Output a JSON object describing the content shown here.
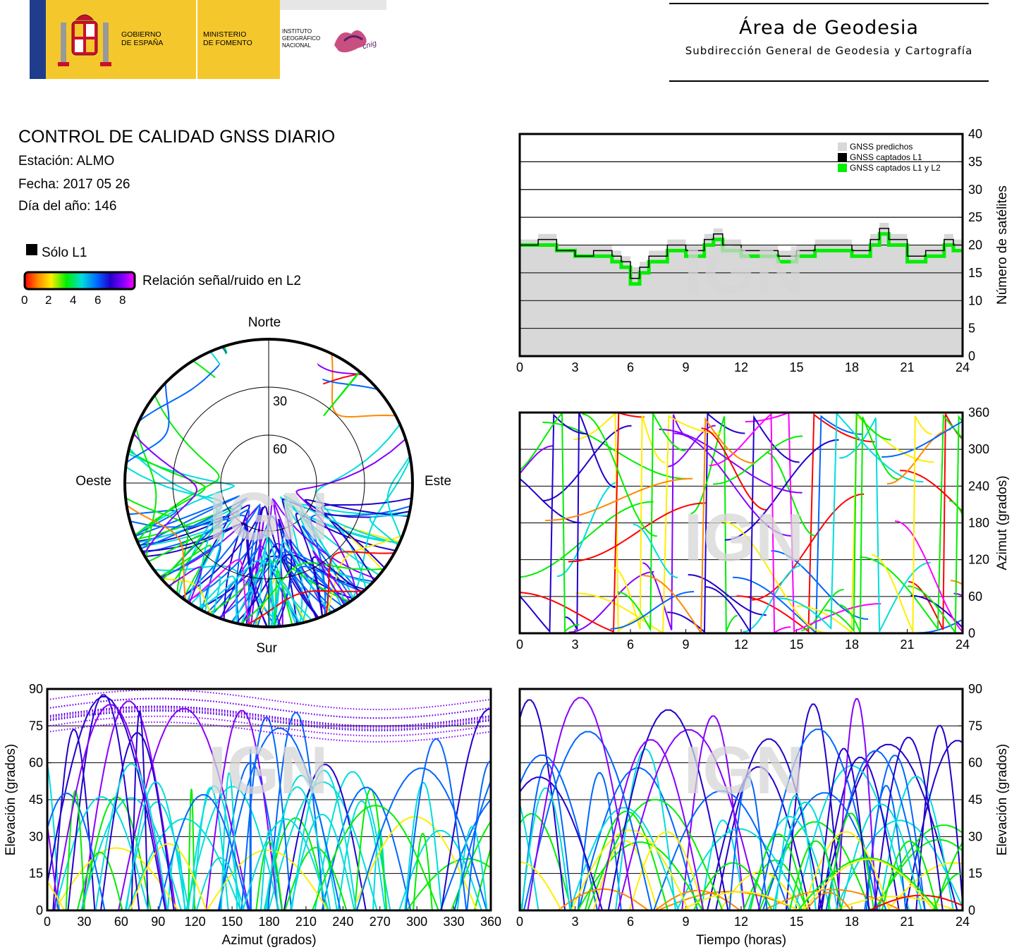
{
  "header": {
    "gov_line1": "GOBIERNO",
    "gov_line2": "DE ESPAÑA",
    "min_line1": "MINISTERIO",
    "min_line2": "DE FOMENTO",
    "ign_line1": "INSTITUTO",
    "ign_line2": "GEOGRÁFICO",
    "ign_line3": "NACIONAL",
    "cnig": "cnig",
    "area_title": "Área de Geodesia",
    "area_subtitle": "Subdirección General de Geodesia y Cartografía"
  },
  "info": {
    "title": "CONTROL DE CALIDAD GNSS DIARIO",
    "station": "Estación: ALMO",
    "date": "Fecha: 2017 05 26",
    "doy": "Día del año: 146"
  },
  "legend": {
    "l1_only": "Sólo L1",
    "snr_label": "Relación señal/ruido en L2",
    "snr_ticks": [
      "0",
      "2",
      "4",
      "6",
      "8"
    ],
    "colors": [
      "#ff0000",
      "#ff8800",
      "#ffee00",
      "#00ee00",
      "#00dddd",
      "#0066ff",
      "#2200cc",
      "#8800ff",
      "#ff00ff"
    ]
  },
  "watermark": "IGN",
  "chart_data": [
    {
      "id": "satellite-count",
      "type": "line",
      "xlabel": "",
      "ylabel": "Número de satélites",
      "xlim": [
        0,
        24
      ],
      "ylim": [
        0,
        40
      ],
      "x_ticks": [
        "0",
        "3",
        "6",
        "9",
        "12",
        "15",
        "18",
        "21",
        "24"
      ],
      "y_ticks": [
        "0",
        "5",
        "10",
        "15",
        "20",
        "25",
        "30",
        "35",
        "40"
      ],
      "legend_position": "top-right",
      "series": [
        {
          "name": "GNSS predichos",
          "color": "#d8d8d8",
          "x": [
            0,
            1,
            2,
            3,
            4,
            5,
            5.5,
            6,
            6.5,
            7,
            8,
            9,
            10,
            10.5,
            11,
            12,
            13,
            14,
            15,
            16,
            17,
            18,
            19,
            19.5,
            20,
            21,
            22,
            23,
            23.5,
            24
          ],
          "values": [
            21,
            22,
            20,
            20,
            20,
            19,
            18,
            16,
            17,
            19,
            21,
            20,
            22,
            23,
            21,
            20,
            20,
            19,
            20,
            21,
            21,
            20,
            22,
            24,
            22,
            20,
            20,
            22,
            21,
            19
          ]
        },
        {
          "name": "GNSS captados L1",
          "color": "#000000",
          "x": [
            0,
            1,
            2,
            3,
            4,
            5,
            5.5,
            6,
            6.5,
            7,
            8,
            9,
            10,
            10.5,
            11,
            12,
            13,
            14,
            15,
            16,
            17,
            18,
            19,
            19.5,
            20,
            21,
            22,
            23,
            23.5,
            24
          ],
          "values": [
            20,
            21,
            19,
            18,
            19,
            18,
            17,
            14,
            16,
            18,
            20,
            19,
            21,
            22,
            20,
            19,
            19,
            18,
            19,
            20,
            20,
            19,
            21,
            23,
            21,
            18,
            19,
            21,
            20,
            19
          ]
        },
        {
          "name": "GNSS captados L1 y L2",
          "color": "#00ee00",
          "x": [
            0,
            1,
            2,
            3,
            4,
            5,
            5.5,
            6,
            6.5,
            7,
            8,
            9,
            10,
            10.5,
            11,
            12,
            13,
            14,
            15,
            16,
            17,
            18,
            19,
            19.5,
            20,
            21,
            22,
            23,
            23.5,
            24
          ],
          "values": [
            20,
            20,
            19,
            18,
            18,
            17,
            16,
            13,
            15,
            17,
            19,
            18,
            20,
            21,
            19,
            18,
            18,
            17,
            18,
            19,
            19,
            18,
            20,
            22,
            20,
            17,
            18,
            20,
            19,
            19
          ]
        }
      ]
    },
    {
      "id": "skyplot",
      "type": "scatter",
      "directions": {
        "north": "Norte",
        "south": "Sur",
        "east": "Este",
        "west": "Oeste"
      },
      "ring_labels": [
        "30",
        "60"
      ],
      "rings_deg": [
        30,
        60
      ]
    },
    {
      "id": "azimuth-vs-time",
      "type": "scatter",
      "xlabel": "",
      "ylabel": "Azimut (grados)",
      "xlim": [
        0,
        24
      ],
      "ylim": [
        0,
        360
      ],
      "x_ticks": [
        "0",
        "3",
        "6",
        "9",
        "12",
        "15",
        "18",
        "21",
        "24"
      ],
      "y_ticks": [
        "0",
        "60",
        "120",
        "180",
        "240",
        "300",
        "360"
      ]
    },
    {
      "id": "elevation-vs-azimuth",
      "type": "scatter",
      "xlabel": "Azimut (grados)",
      "ylabel": "Elevación (grados)",
      "xlim": [
        0,
        360
      ],
      "ylim": [
        0,
        90
      ],
      "x_ticks": [
        "0",
        "30",
        "60",
        "90",
        "120",
        "150",
        "180",
        "210",
        "240",
        "270",
        "300",
        "330",
        "360"
      ],
      "y_ticks": [
        "0",
        "15",
        "30",
        "45",
        "60",
        "75",
        "90"
      ]
    },
    {
      "id": "elevation-vs-time",
      "type": "scatter",
      "xlabel": "Tiempo (horas)",
      "ylabel": "Elevación (grados)",
      "xlim": [
        0,
        24
      ],
      "ylim": [
        0,
        90
      ],
      "x_ticks": [
        "0",
        "3",
        "6",
        "9",
        "12",
        "15",
        "18",
        "21",
        "24"
      ],
      "y_ticks": [
        "0",
        "15",
        "30",
        "45",
        "60",
        "75",
        "90"
      ]
    }
  ]
}
